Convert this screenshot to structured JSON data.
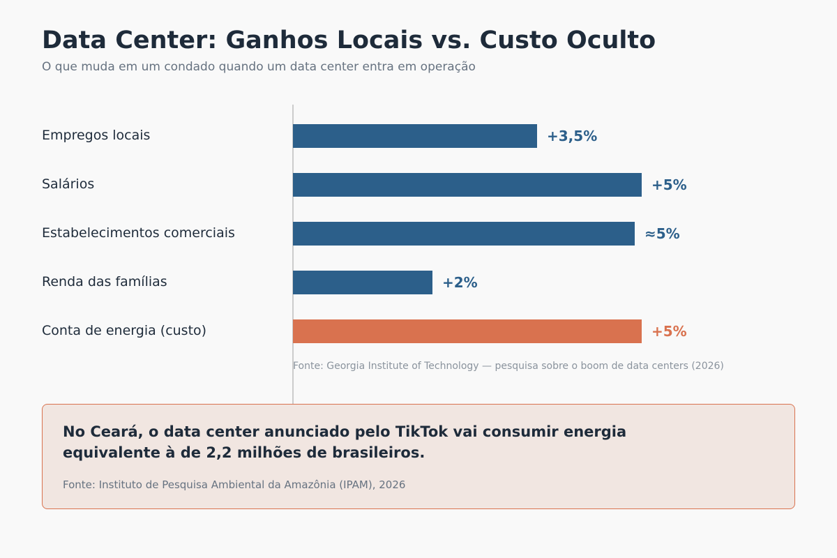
{
  "page": {
    "title": "Data Center: Ganhos Locais vs. Custo Oculto",
    "subtitle": "O que muda em um condado quando um data center entra em operação"
  },
  "chart_data": {
    "type": "bar",
    "orientation": "horizontal",
    "categories": [
      "Empregos locais",
      "Salários",
      "Estabelecimentos comerciais",
      "Renda das famílias",
      "Conta de energia (custo)"
    ],
    "values": [
      3.5,
      5,
      4.9,
      2,
      5
    ],
    "value_labels": [
      "+3,5%",
      "+5%",
      "≈5%",
      "+2%",
      "+5%"
    ],
    "bar_colors": [
      "#2c5f8a",
      "#2c5f8a",
      "#2c5f8a",
      "#2c5f8a",
      "#d9724f"
    ],
    "unit": "%",
    "xlim": [
      0,
      5
    ],
    "grid": false,
    "source": "Fonte: Georgia Institute of Technology — pesquisa sobre o boom de data centers (2026)"
  },
  "callout": {
    "text": "No Ceará, o data center anunciado pelo TikTok vai consumir energia equivalente à de 2,2 milhões de brasileiros.",
    "source": "Fonte: Instituto de Pesquisa Ambiental da Amazônia (IPAM), 2026"
  },
  "colors": {
    "gain": "#2c5f8a",
    "cost": "#d9724f",
    "axis": "#cccccc",
    "text_dark": "#1e2b3a"
  }
}
